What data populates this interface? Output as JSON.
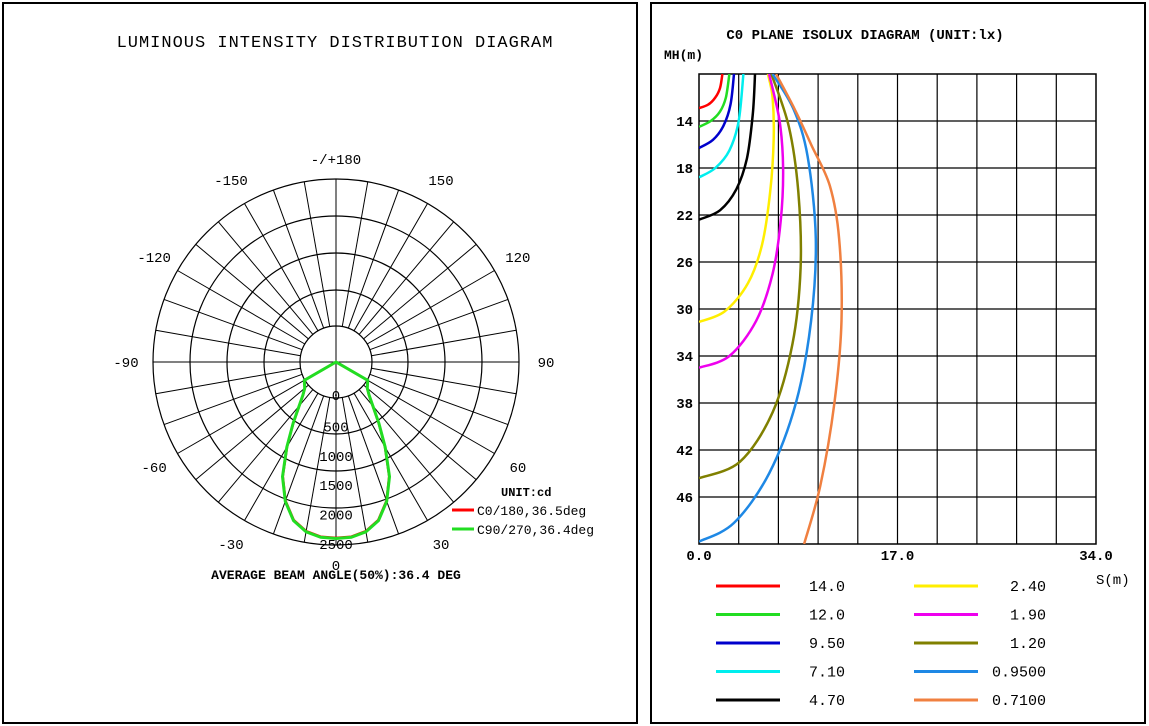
{
  "chart_data": [
    {
      "type": "polar",
      "title": "LUMINOUS INTENSITY DISTRIBUTION DIAGRAM",
      "angle_labels": [
        {
          "text": "-/+180",
          "deg": 180
        },
        {
          "text": "150",
          "deg": 150
        },
        {
          "text": "-150",
          "deg": -150
        },
        {
          "text": "120",
          "deg": 120
        },
        {
          "text": "-120",
          "deg": -120
        },
        {
          "text": "90",
          "deg": 90
        },
        {
          "text": "-90",
          "deg": -90
        },
        {
          "text": "60",
          "deg": 60
        },
        {
          "text": "-60",
          "deg": -60
        },
        {
          "text": "30",
          "deg": 30
        },
        {
          "text": "-30",
          "deg": -30
        },
        {
          "text": "0",
          "deg": 0
        }
      ],
      "radial_labels": [
        "0",
        "500",
        "1000",
        "1500",
        "2000",
        "2500"
      ],
      "radial_values": [
        0,
        500,
        1000,
        1500,
        2000,
        2500
      ],
      "unit_label": "UNIT:cd",
      "footer": "AVERAGE BEAM ANGLE(50%):36.4 DEG",
      "series": [
        {
          "name": "C0/180,36.5deg",
          "color": "#ff0000",
          "points": [
            [
              0,
              2380
            ],
            [
              5,
              2370
            ],
            [
              10,
              2310
            ],
            [
              15,
              2170
            ],
            [
              20,
              1900
            ],
            [
              25,
              1530
            ],
            [
              30,
              1050
            ],
            [
              35,
              650
            ],
            [
              40,
              360
            ],
            [
              45,
              180
            ],
            [
              50,
              80
            ],
            [
              60,
              10
            ]
          ]
        },
        {
          "name": "C90/270,36.4deg",
          "color": "#22dd22",
          "points": [
            [
              0,
              2390
            ],
            [
              5,
              2380
            ],
            [
              10,
              2320
            ],
            [
              15,
              2180
            ],
            [
              20,
              1910
            ],
            [
              25,
              1540
            ],
            [
              30,
              1060
            ],
            [
              35,
              660
            ],
            [
              40,
              365
            ],
            [
              45,
              185
            ],
            [
              50,
              82
            ],
            [
              60,
              10
            ]
          ]
        }
      ]
    },
    {
      "type": "line",
      "title": "C0 PLANE ISOLUX DIAGRAM (UNIT:lx)",
      "ylabel": "MH(m)",
      "xlabel": "S(m)",
      "y_tick_labels": [
        "14",
        "18",
        "22",
        "26",
        "30",
        "34",
        "38",
        "42",
        "46"
      ],
      "y_ticks": [
        14,
        18,
        22,
        26,
        30,
        34,
        38,
        42,
        46
      ],
      "x_tick_labels": [
        "0.0",
        "17.0",
        "34.0"
      ],
      "x_ticks": [
        0,
        17,
        34
      ],
      "xlim": [
        0,
        34
      ],
      "ylim": [
        10,
        50
      ],
      "series": [
        {
          "name": "14.0",
          "color": "#ff0000",
          "points": [
            [
              0,
              12.9
            ],
            [
              0.8,
              12.6
            ],
            [
              1.4,
              12.0
            ],
            [
              1.8,
              11.2
            ],
            [
              2.0,
              10.0
            ]
          ]
        },
        {
          "name": "12.0",
          "color": "#22dd22",
          "points": [
            [
              0,
              14.5
            ],
            [
              1.0,
              14.0
            ],
            [
              1.8,
              13.2
            ],
            [
              2.3,
              12.0
            ],
            [
              2.6,
              10.0
            ]
          ]
        },
        {
          "name": "9.50",
          "color": "#0000cc",
          "points": [
            [
              0,
              16.3
            ],
            [
              1.2,
              15.6
            ],
            [
              2.1,
              14.4
            ],
            [
              2.7,
              12.6
            ],
            [
              3.0,
              10.0
            ]
          ]
        },
        {
          "name": "7.10",
          "color": "#00eeee",
          "points": [
            [
              0,
              18.8
            ],
            [
              1.4,
              18.0
            ],
            [
              2.6,
              16.5
            ],
            [
              3.4,
              14.0
            ],
            [
              3.8,
              10.0
            ]
          ]
        },
        {
          "name": "4.70",
          "color": "#000000",
          "points": [
            [
              0,
              22.4
            ],
            [
              1.8,
              21.6
            ],
            [
              3.2,
              19.8
            ],
            [
              4.1,
              17.2
            ],
            [
              4.6,
              13.5
            ],
            [
              4.8,
              10.0
            ]
          ]
        },
        {
          "name": "2.40",
          "color": "#ffee00",
          "points": [
            [
              0,
              31.1
            ],
            [
              2.2,
              30.2
            ],
            [
              4.2,
              27.8
            ],
            [
              5.4,
              24.5
            ],
            [
              6.1,
              20.0
            ],
            [
              6.4,
              15.5
            ],
            [
              6.3,
              12.0
            ],
            [
              5.9,
              10.0
            ]
          ]
        },
        {
          "name": "1.90",
          "color": "#ee00ee",
          "points": [
            [
              0,
              35.0
            ],
            [
              2.6,
              34.0
            ],
            [
              4.9,
              31.0
            ],
            [
              6.3,
              27.0
            ],
            [
              7.0,
              22.5
            ],
            [
              7.2,
              18.0
            ],
            [
              6.9,
              14.0
            ],
            [
              6.0,
              10.0
            ]
          ]
        },
        {
          "name": "1.20",
          "color": "#808000",
          "points": [
            [
              0,
              44.4
            ],
            [
              3.5,
              43.0
            ],
            [
              6.3,
              38.8
            ],
            [
              8.0,
              33.0
            ],
            [
              8.7,
              26.5
            ],
            [
              8.5,
              20.0
            ],
            [
              7.7,
              14.5
            ],
            [
              6.2,
              10.0
            ]
          ]
        },
        {
          "name": "0.9500",
          "color": "#1e88e5",
          "points": [
            [
              0,
              49.8
            ],
            [
              3.0,
              48.2
            ],
            [
              6.0,
              44.0
            ],
            [
              8.3,
              38.0
            ],
            [
              9.6,
              31.0
            ],
            [
              10.0,
              24.0
            ],
            [
              9.3,
              17.0
            ],
            [
              8.1,
              13.0
            ],
            [
              6.3,
              10.0
            ]
          ]
        },
        {
          "name": "0.7100",
          "color": "#f08040",
          "points": [
            [
              9.0,
              50.0
            ],
            [
              10.4,
              45.0
            ],
            [
              11.6,
              38.0
            ],
            [
              12.2,
              31.0
            ],
            [
              12.0,
              24.0
            ],
            [
              11.2,
              19.5
            ],
            [
              9.6,
              16.0
            ],
            [
              8.2,
              13.0
            ],
            [
              6.6,
              10.0
            ]
          ]
        }
      ]
    }
  ]
}
